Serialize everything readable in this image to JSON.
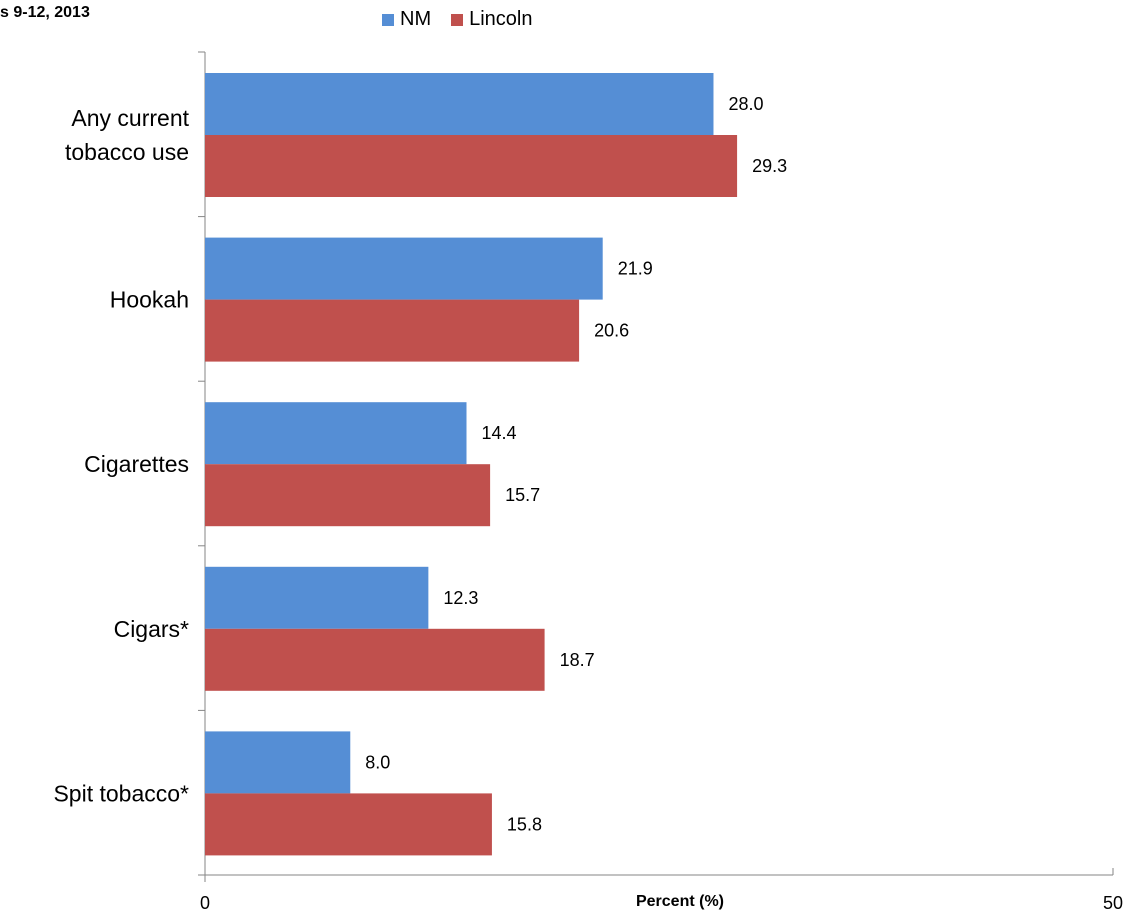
{
  "chart_data": {
    "type": "bar",
    "orientation": "horizontal",
    "title": "s 9-12, 2013",
    "xlabel": "Percent (%)",
    "xlim": [
      0,
      50
    ],
    "x_ticks": [
      "0",
      "50"
    ],
    "categories": [
      "Any current\ntobacco use",
      "Hookah",
      "Cigarettes",
      "Cigars*",
      "Spit tobacco*"
    ],
    "series": [
      {
        "name": "NM",
        "color": "#558ED5",
        "values": [
          28.0,
          21.9,
          14.4,
          12.3,
          8.0
        ],
        "labels": [
          "28.0",
          "21.9",
          "14.4",
          "12.3",
          "8.0"
        ]
      },
      {
        "name": "Lincoln",
        "color": "#C0504D",
        "values": [
          29.3,
          20.6,
          15.7,
          18.7,
          15.8
        ],
        "labels": [
          "29.3",
          "20.6",
          "15.7",
          "18.7",
          "15.8"
        ]
      }
    ],
    "grid": false,
    "legend_position": "top"
  }
}
